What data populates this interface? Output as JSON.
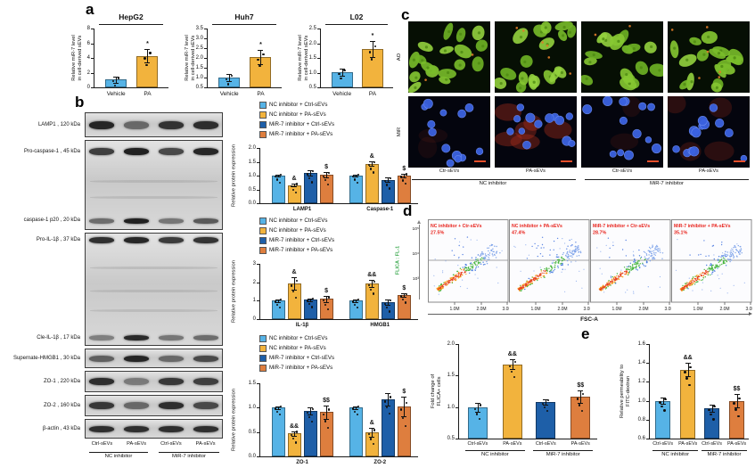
{
  "figure": {
    "panel_labels": {
      "a": "a",
      "b": "b",
      "c": "c",
      "d": "d",
      "e": "e"
    }
  },
  "colors": {
    "light_blue": "#56B3E6",
    "yellow": "#F2B33D",
    "dark_blue": "#1E5FA8",
    "orange": "#DE7E3E",
    "flow_text_red": "#E8261F",
    "flow_axis_green": "#3AA84D",
    "scale_bar_red": "#E64F2A"
  },
  "legend": [
    "NC inhibitor + Ctrl-sEVs",
    "NC inhibitor + PA-sEVs",
    "MiR-7 inhibitor + Ctrl-sEVs",
    "MiR-7 inhibitor + PA-sEVs"
  ],
  "blots": {
    "lanes": [
      "Ctrl-sEVs",
      "PA-sEVs",
      "Ctrl-sEVs",
      "PA-sEVs"
    ],
    "groups": [
      "NC inhibitor",
      "MiR-7 inhibitor"
    ],
    "rows": [
      {
        "label": "LAMP1 , 120 kDa",
        "intensities": [
          0.92,
          0.55,
          0.85,
          0.88
        ]
      },
      {
        "label": "Pro-caspase-1 , 45 kDa",
        "intensities": [
          0.8,
          0.95,
          0.75,
          0.92
        ]
      },
      {
        "label": "caspase-1 p20 , 20 kDa",
        "intensities": [
          0.55,
          0.95,
          0.5,
          0.65
        ]
      },
      {
        "label": "Pro-IL-1β , 37 kDa",
        "intensities": [
          0.88,
          0.92,
          0.82,
          0.86
        ]
      },
      {
        "label": "Cle-IL-1β , 17 kDa",
        "intensities": [
          0.45,
          0.9,
          0.5,
          0.55
        ]
      },
      {
        "label": "Supernate-HMGB1 , 30 kDa",
        "intensities": [
          0.6,
          0.92,
          0.55,
          0.72
        ]
      },
      {
        "label": "ZO-1 , 220 kDa",
        "intensities": [
          0.88,
          0.45,
          0.82,
          0.78
        ]
      },
      {
        "label": "ZO-2 , 160 kDa",
        "intensities": [
          0.82,
          0.55,
          0.88,
          0.72
        ]
      },
      {
        "label": "β-actin , 43 kDa",
        "intensities": [
          0.87,
          0.87,
          0.87,
          0.87
        ]
      }
    ]
  },
  "microscopy": {
    "row_labels": [
      "AO",
      "MiR"
    ],
    "col_labels": [
      "Ctr-sEVs",
      "PA-sEVs",
      "Ctr-sEVs",
      "PA-sEVs"
    ],
    "groups": [
      "NC inhibitor",
      "MiR-7 inhibitor"
    ]
  },
  "flow": {
    "ylabel": "FLICA : FL-1",
    "xlabel": "FSC-A",
    "yticks": [
      "10⁵",
      "10⁴",
      "10³"
    ],
    "xticks": [
      "1.0M",
      "2.0M",
      "3.0M"
    ],
    "plots": [
      {
        "label": "NC inhibitor + Ctr-sEVs",
        "percent": "27.5%"
      },
      {
        "label": "NC inhibitor + PA-sEVs",
        "percent": "47.4%"
      },
      {
        "label": "MiR-7 inhibitor + Ctr-sEVs",
        "percent": "28.7%"
      },
      {
        "label": "MiR-7 inhibitor + PA-sEVs",
        "percent": "35.1%"
      }
    ]
  },
  "chart_data": [
    {
      "id": "hepg2",
      "type": "bar",
      "title": "HepG2",
      "ylabel": [
        "Relative miR-7 level",
        "in cell-derived sEVs"
      ],
      "ylim": [
        0,
        8
      ],
      "yticks": [
        "0",
        "2",
        "4",
        "6",
        "8"
      ],
      "categories": [
        "Vehicle",
        "PA"
      ],
      "values": [
        1.05,
        4.3
      ],
      "errors": [
        0.4,
        0.95
      ],
      "sig": [
        "",
        "*"
      ],
      "bar_colors": [
        "light_blue",
        "yellow"
      ]
    },
    {
      "id": "huh7",
      "type": "bar",
      "title": "Huh7",
      "ylabel": [
        "Relative miR-7 level",
        "in cell-derived sEVs"
      ],
      "ylim": [
        0.5,
        3.5
      ],
      "yticks": [
        "0.5",
        "1.0",
        "1.5",
        "2.0",
        "2.5",
        "3.0",
        "3.5"
      ],
      "categories": [
        "Vehicle",
        "PA"
      ],
      "values": [
        1.0,
        2.05
      ],
      "errors": [
        0.2,
        0.35
      ],
      "sig": [
        "",
        "*"
      ],
      "bar_colors": [
        "light_blue",
        "yellow"
      ]
    },
    {
      "id": "l02",
      "type": "bar",
      "title": "L02",
      "ylabel": [
        "Relative miR-7 level",
        "in cell-derived sEVs"
      ],
      "ylim": [
        0.5,
        2.5
      ],
      "yticks": [
        "0.5",
        "1.0",
        "1.5",
        "2.0",
        "2.5"
      ],
      "categories": [
        "Vehicle",
        "PA"
      ],
      "values": [
        1.02,
        1.8
      ],
      "errors": [
        0.12,
        0.27
      ],
      "sig": [
        "",
        "*"
      ],
      "bar_colors": [
        "light_blue",
        "yellow"
      ]
    },
    {
      "id": "protein1",
      "type": "grouped-bar",
      "legend": true,
      "ylabel": [
        "Relative protein expression"
      ],
      "ylim": [
        0,
        2
      ],
      "yticks": [
        "0.0",
        "0.5",
        "1.0",
        "1.5",
        "2.0"
      ],
      "categories": [
        "LAMP1",
        "Caspase-1"
      ],
      "series": [
        {
          "name": "NC inhibitor + Ctrl-sEVs",
          "values": [
            1.0,
            1.0
          ],
          "errors": [
            0.02,
            0.03
          ]
        },
        {
          "name": "NC inhibitor + PA-sEVs",
          "values": [
            0.65,
            1.43
          ],
          "errors": [
            0.05,
            0.08
          ]
        },
        {
          "name": "MiR-7 inhibitor + Ctrl-sEVs",
          "values": [
            1.1,
            0.85
          ],
          "errors": [
            0.1,
            0.08
          ]
        },
        {
          "name": "MiR-7 inhibitor + PA-sEVs",
          "values": [
            1.03,
            1.0
          ],
          "errors": [
            0.1,
            0.07
          ]
        }
      ],
      "sig": [
        [
          "",
          "&",
          "",
          "$"
        ],
        [
          "",
          "&",
          "",
          "$"
        ]
      ]
    },
    {
      "id": "protein2",
      "type": "grouped-bar",
      "legend": true,
      "ylabel": [
        "Relative protein expression"
      ],
      "ylim": [
        0,
        3
      ],
      "yticks": [
        "0",
        "1",
        "2",
        "3"
      ],
      "categories": [
        "IL-1β",
        "HMGB1"
      ],
      "series": [
        {
          "name": "NC inhibitor + Ctrl-sEVs",
          "values": [
            1.0,
            1.0
          ],
          "errors": [
            0.02,
            0.02
          ]
        },
        {
          "name": "NC inhibitor + PA-sEVs",
          "values": [
            1.95,
            1.93
          ],
          "errors": [
            0.33,
            0.18
          ]
        },
        {
          "name": "MiR-7 inhibitor + Ctrl-sEVs",
          "values": [
            1.05,
            0.92
          ],
          "errors": [
            0.07,
            0.15
          ]
        },
        {
          "name": "MiR-7 inhibitor + PA-sEVs",
          "values": [
            1.1,
            1.3
          ],
          "errors": [
            0.18,
            0.08
          ]
        }
      ],
      "sig": [
        [
          "",
          "&",
          "",
          "$"
        ],
        [
          "",
          "&&",
          "",
          "$"
        ]
      ]
    },
    {
      "id": "protein3",
      "type": "grouped-bar",
      "legend": true,
      "ylabel": [
        "Relative protein expression"
      ],
      "ylim": [
        0,
        1.5
      ],
      "yticks": [
        "0.0",
        "0.5",
        "1.0",
        "1.5"
      ],
      "categories": [
        "ZO-1",
        "ZO-2"
      ],
      "series": [
        {
          "name": "NC inhibitor + Ctrl-sEVs",
          "values": [
            1.0,
            1.0
          ],
          "errors": [
            0.02,
            0.02
          ]
        },
        {
          "name": "NC inhibitor + PA-sEVs",
          "values": [
            0.47,
            0.5
          ],
          "errors": [
            0.05,
            0.09
          ]
        },
        {
          "name": "MiR-7 inhibitor + Ctrl-sEVs",
          "values": [
            0.93,
            1.17
          ],
          "errors": [
            0.07,
            0.12
          ]
        },
        {
          "name": "MiR-7 inhibitor + PA-sEVs",
          "values": [
            0.91,
            1.03
          ],
          "errors": [
            0.14,
            0.2
          ]
        }
      ],
      "sig": [
        [
          "",
          "&&",
          "",
          "$$"
        ],
        [
          "",
          "&",
          "",
          "$"
        ]
      ]
    },
    {
      "id": "flica",
      "type": "bar",
      "ylabel": [
        "Fold change of",
        "FLICA+ cells"
      ],
      "ylim": [
        0.5,
        2.0
      ],
      "yticks": [
        "0.5",
        "1.0",
        "1.5",
        "2.0"
      ],
      "categories": [
        "Ctrl-sEVs",
        "PA-sEVs",
        "Ctrl-sEVs",
        "PA-sEVs"
      ],
      "group_labels": [
        "NC inhibitor",
        "MiR-7 inhibitor"
      ],
      "values": [
        1.0,
        1.68,
        1.08,
        1.17
      ],
      "errors": [
        0.07,
        0.08,
        0.04,
        0.1
      ],
      "sig": [
        "",
        "&&",
        "",
        "$$"
      ],
      "bar_colors": [
        "light_blue",
        "yellow",
        "dark_blue",
        "orange"
      ]
    },
    {
      "id": "fitc",
      "type": "bar",
      "ylabel": [
        "Relative permeability to",
        "FITC-dextran"
      ],
      "ylim": [
        0.6,
        1.6
      ],
      "yticks": [
        "0.6",
        "0.8",
        "1.0",
        "1.2",
        "1.4",
        "1.6"
      ],
      "categories": [
        "Ctrl-sEVs",
        "PA-sEVs",
        "Ctrl-sEVs",
        "PA-sEVs"
      ],
      "group_labels": [
        "NC inhibitor",
        "MiR-7 inhibitor"
      ],
      "values": [
        1.0,
        1.33,
        0.92,
        1.0
      ],
      "errors": [
        0.03,
        0.07,
        0.04,
        0.07
      ],
      "sig": [
        "",
        "&&",
        "",
        "$$"
      ],
      "bar_colors": [
        "light_blue",
        "yellow",
        "dark_blue",
        "orange"
      ]
    }
  ]
}
